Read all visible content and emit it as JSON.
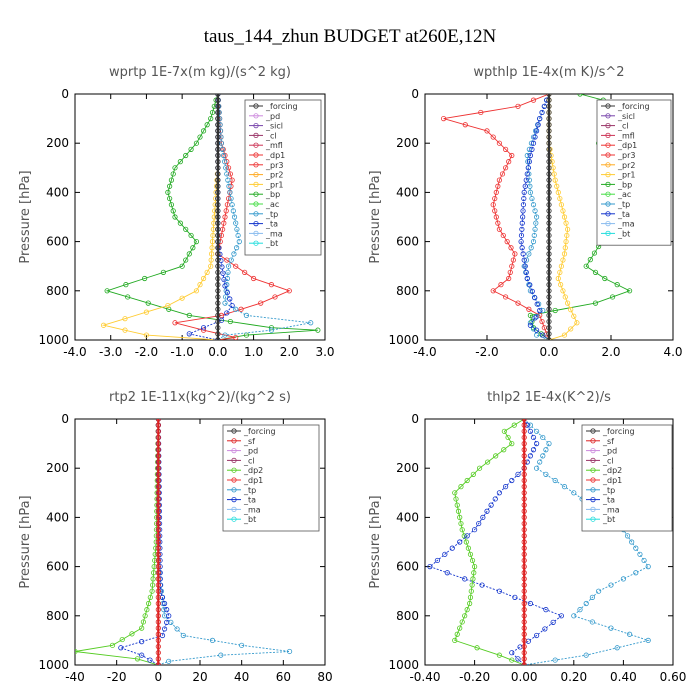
{
  "figure_title": "taus_144_zhun  BUDGET at260E,12N",
  "colors": {
    "forcing": "#333333",
    "pd": "#cc88dd",
    "sicl": "#7744aa",
    "cl": "#993366",
    "mfl": "#cc3355",
    "dp1": "#ee3333",
    "dp2": "#55cc22",
    "pr3": "#ee3333",
    "pr2": "#ffaa22",
    "pr1": "#ffcc33",
    "bp": "#22aa22",
    "ac": "#44dd44",
    "tp": "#3399cc",
    "ta": "#1133cc",
    "ma": "#88bbee",
    "bt": "#22dddd",
    "sf": "#dd2222"
  },
  "chart_data": [
    {
      "type": "line",
      "title": "wprtp   1E-7x(m kg)/(s^2 kg)",
      "ylabel": "Pressure  [hPa]",
      "xlim": [
        -4,
        3
      ],
      "ylim": [
        1000,
        0
      ],
      "xticks": [
        "-4.0",
        "-3.0",
        "-2.0",
        "-1.0",
        "0.0",
        "1.0",
        "2.0",
        "3.0"
      ],
      "yticks": [
        "0",
        "200",
        "400",
        "600",
        "800",
        "1000"
      ],
      "legend": [
        "_forcing",
        "_pd",
        "_sicl",
        "_cl",
        "_mfl",
        "_dp1",
        "_pr3",
        "_pr2",
        "_pr1",
        "_bp",
        "_ac",
        "_tp",
        "_ta",
        "_ma",
        "_bt"
      ],
      "series": [
        {
          "name": "_bp",
          "key": "bp",
          "points": [
            [
              0,
              0
            ],
            [
              -0.2,
              100
            ],
            [
              -0.6,
              200
            ],
            [
              -1.2,
              300
            ],
            [
              -1.4,
              400
            ],
            [
              -1.2,
              500
            ],
            [
              -0.6,
              600
            ],
            [
              -1.0,
              700
            ],
            [
              -3.1,
              800
            ],
            [
              -0.8,
              900
            ],
            [
              1.5,
              950
            ],
            [
              2.8,
              960
            ],
            [
              0.8,
              980
            ],
            [
              0,
              1000
            ]
          ]
        },
        {
          "name": "_pr1",
          "key": "pr1",
          "points": [
            [
              0,
              0
            ],
            [
              0,
              300
            ],
            [
              -0.1,
              500
            ],
            [
              -0.2,
              700
            ],
            [
              -0.6,
              800
            ],
            [
              -1.4,
              860
            ],
            [
              -3.2,
              940
            ],
            [
              -2.0,
              980
            ],
            [
              0,
              1000
            ]
          ]
        },
        {
          "name": "_dp1",
          "key": "dp1",
          "points": [
            [
              0,
              0
            ],
            [
              0.1,
              200
            ],
            [
              0.4,
              350
            ],
            [
              0.2,
              500
            ],
            [
              0,
              650
            ],
            [
              1.0,
              750
            ],
            [
              2.0,
              800
            ],
            [
              1.2,
              850
            ],
            [
              0.1,
              900
            ],
            [
              -1.2,
              930
            ],
            [
              -0.4,
              960
            ],
            [
              0.5,
              990
            ],
            [
              0,
              1000
            ]
          ]
        },
        {
          "name": "_tp",
          "key": "tp",
          "points": [
            [
              0,
              0
            ],
            [
              0.1,
              200
            ],
            [
              0.4,
              450
            ],
            [
              0.6,
              600
            ],
            [
              0.3,
              700
            ],
            [
              0.2,
              850
            ],
            [
              0.8,
              900
            ],
            [
              2.6,
              930
            ],
            [
              1.5,
              960
            ],
            [
              0.2,
              980
            ],
            [
              0,
              1000
            ]
          ]
        },
        {
          "name": "_ta",
          "key": "ta",
          "points": [
            [
              0,
              0
            ],
            [
              0,
              600
            ],
            [
              0.2,
              780
            ],
            [
              0.4,
              860
            ],
            [
              0.1,
              920
            ],
            [
              -0.4,
              950
            ],
            [
              -0.8,
              975
            ],
            [
              0,
              1000
            ]
          ]
        },
        {
          "name": "_forcing",
          "key": "forcing",
          "points": [
            [
              0,
              0
            ],
            [
              0,
              1000
            ]
          ]
        }
      ]
    },
    {
      "type": "line",
      "title": "wpthlp   1E-4x(m K)/s^2",
      "ylabel": "Pressure  [hPa]",
      "xlim": [
        -4,
        4
      ],
      "ylim": [
        1000,
        0
      ],
      "xticks": [
        "-4.0",
        "-2.0",
        "0.0",
        "2.0",
        "4.0"
      ],
      "yticks": [
        "0",
        "200",
        "400",
        "600",
        "800",
        "1000"
      ],
      "legend": [
        "_forcing",
        "_sicl",
        "_cl",
        "_mfl",
        "_dp1",
        "_pr3",
        "_pr2",
        "_pr1",
        "_bp",
        "_ac",
        "_tp",
        "_ta",
        "_ma",
        "_bt"
      ],
      "series": [
        {
          "name": "_bp",
          "key": "bp",
          "points": [
            [
              1.0,
              0
            ],
            [
              2.5,
              50
            ],
            [
              3.4,
              100
            ],
            [
              2.0,
              150
            ],
            [
              1.6,
              200
            ],
            [
              2.5,
              300
            ],
            [
              3.2,
              400
            ],
            [
              3.0,
              500
            ],
            [
              1.6,
              620
            ],
            [
              1.2,
              700
            ],
            [
              1.8,
              750
            ],
            [
              2.6,
              800
            ],
            [
              1.5,
              850
            ],
            [
              0.2,
              880
            ],
            [
              -0.6,
              900
            ],
            [
              -0.5,
              950
            ],
            [
              0,
              1000
            ]
          ]
        },
        {
          "name": "_dp1",
          "key": "dp1",
          "points": [
            [
              0,
              0
            ],
            [
              -1.0,
              50
            ],
            [
              -3.4,
              100
            ],
            [
              -2.0,
              150
            ],
            [
              -1.2,
              250
            ],
            [
              -1.6,
              350
            ],
            [
              -1.8,
              450
            ],
            [
              -1.6,
              550
            ],
            [
              -1.1,
              650
            ],
            [
              -1.3,
              750
            ],
            [
              -1.8,
              800
            ],
            [
              -1.0,
              850
            ],
            [
              -0.3,
              900
            ],
            [
              0,
              1000
            ]
          ]
        },
        {
          "name": "_tp",
          "key": "tp",
          "points": [
            [
              0,
              0
            ],
            [
              -0.3,
              100
            ],
            [
              -0.7,
              250
            ],
            [
              -0.6,
              400
            ],
            [
              -0.4,
              500
            ],
            [
              -0.5,
              600
            ],
            [
              -0.8,
              700
            ],
            [
              -0.6,
              800
            ],
            [
              -0.2,
              880
            ],
            [
              -0.6,
              930
            ],
            [
              -0.4,
              980
            ],
            [
              0,
              1000
            ]
          ]
        },
        {
          "name": "_ta",
          "key": "ta",
          "points": [
            [
              0,
              0
            ],
            [
              -0.3,
              100
            ],
            [
              -0.6,
              250
            ],
            [
              -0.8,
              400
            ],
            [
              -0.9,
              600
            ],
            [
              -0.7,
              750
            ],
            [
              -0.3,
              880
            ],
            [
              -0.6,
              940
            ],
            [
              -0.2,
              980
            ],
            [
              0,
              1000
            ]
          ]
        },
        {
          "name": "_pr1",
          "key": "pr1",
          "points": [
            [
              0,
              0
            ],
            [
              0,
              200
            ],
            [
              0.2,
              350
            ],
            [
              0.4,
              450
            ],
            [
              0.6,
              550
            ],
            [
              0.5,
              650
            ],
            [
              0.3,
              750
            ],
            [
              0.6,
              850
            ],
            [
              0.9,
              930
            ],
            [
              0.5,
              980
            ],
            [
              0,
              1000
            ]
          ]
        },
        {
          "name": "_forcing",
          "key": "forcing",
          "points": [
            [
              0,
              0
            ],
            [
              0,
              1000
            ]
          ]
        }
      ]
    },
    {
      "type": "line",
      "title": "rtp2   1E-11x(kg^2)/(kg^2 s)",
      "ylabel": "Pressure  [hPa]",
      "xlim": [
        -40,
        80
      ],
      "ylim": [
        1000,
        0
      ],
      "xticks": [
        "-40",
        "-20",
        "0",
        "20",
        "40",
        "60",
        "80"
      ],
      "yticks": [
        "0",
        "200",
        "400",
        "600",
        "800",
        "1000"
      ],
      "legend": [
        "_forcing",
        "_sf",
        "_pd",
        "_cl",
        "_dp2",
        "_dp1",
        "_tp",
        "_ta",
        "_ma",
        "_bt"
      ],
      "series": [
        {
          "name": "_dp1",
          "key": "dp2",
          "points": [
            [
              0,
              0
            ],
            [
              -1,
              500
            ],
            [
              -3,
              700
            ],
            [
              -8,
              850
            ],
            [
              -22,
              920
            ],
            [
              -40,
              945
            ],
            [
              -10,
              975
            ],
            [
              0,
              1000
            ]
          ]
        },
        {
          "name": "_tp",
          "key": "tp",
          "points": [
            [
              0,
              0
            ],
            [
              0,
              600
            ],
            [
              3,
              800
            ],
            [
              12,
              880
            ],
            [
              40,
              920
            ],
            [
              63,
              945
            ],
            [
              30,
              960
            ],
            [
              5,
              985
            ],
            [
              0,
              1000
            ]
          ]
        },
        {
          "name": "_ta",
          "key": "ta",
          "points": [
            [
              0,
              0
            ],
            [
              1,
              700
            ],
            [
              5,
              800
            ],
            [
              2,
              880
            ],
            [
              -18,
              930
            ],
            [
              -8,
              960
            ],
            [
              0,
              1000
            ]
          ]
        },
        {
          "name": "_forcing",
          "key": "sf",
          "points": [
            [
              0,
              0
            ],
            [
              0,
              1000
            ]
          ]
        }
      ]
    },
    {
      "type": "line",
      "title": "thlp2   1E-4x(K^2)/s",
      "ylabel": "Pressure  [hPa]",
      "xlim": [
        -0.4,
        0.6
      ],
      "ylim": [
        1000,
        0
      ],
      "xticks": [
        "-0.40",
        "-0.20",
        "0.00",
        "0.20",
        "0.40",
        "0.60"
      ],
      "yticks": [
        "0",
        "200",
        "400",
        "600",
        "800",
        "1000"
      ],
      "legend": [
        "_forcing",
        "_sf",
        "_pd",
        "_cl",
        "_dp2",
        "_dp1",
        "_tp",
        "_ta",
        "_ma",
        "_bt"
      ],
      "series": [
        {
          "name": "_dp1",
          "key": "dp2",
          "points": [
            [
              0,
              0
            ],
            [
              -0.08,
              50
            ],
            [
              -0.05,
              100
            ],
            [
              -0.18,
              200
            ],
            [
              -0.28,
              300
            ],
            [
              -0.25,
              450
            ],
            [
              -0.2,
              600
            ],
            [
              -0.22,
              750
            ],
            [
              -0.28,
              900
            ],
            [
              -0.1,
              960
            ],
            [
              0,
              1000
            ]
          ]
        },
        {
          "name": "_tp",
          "key": "tp",
          "points": [
            [
              0,
              0
            ],
            [
              0.1,
              100
            ],
            [
              0.05,
              200
            ],
            [
              0.2,
              300
            ],
            [
              0.4,
              450
            ],
            [
              0.5,
              600
            ],
            [
              0.3,
              700
            ],
            [
              0.2,
              800
            ],
            [
              0.5,
              900
            ],
            [
              0.25,
              960
            ],
            [
              0,
              1000
            ]
          ]
        },
        {
          "name": "_ta",
          "key": "ta",
          "points": [
            [
              0,
              0
            ],
            [
              0.05,
              100
            ],
            [
              0,
              200
            ],
            [
              -0.1,
              300
            ],
            [
              -0.2,
              450
            ],
            [
              -0.38,
              600
            ],
            [
              -0.1,
              700
            ],
            [
              0.15,
              800
            ],
            [
              0.05,
              880
            ],
            [
              -0.05,
              950
            ],
            [
              0,
              1000
            ]
          ]
        },
        {
          "name": "_forcing",
          "key": "sf",
          "points": [
            [
              0,
              0
            ],
            [
              0,
              1000
            ]
          ]
        }
      ]
    }
  ]
}
